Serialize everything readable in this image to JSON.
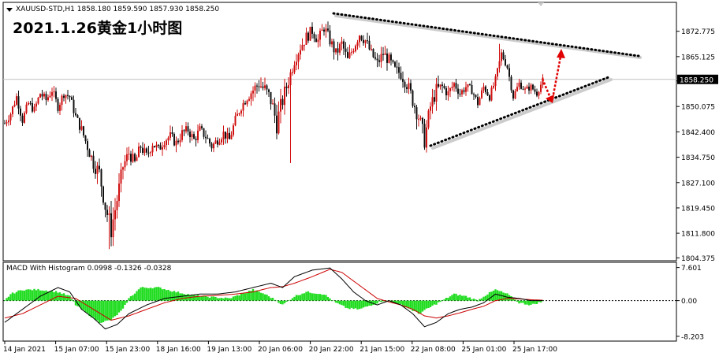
{
  "header": {
    "symbol_info": "XAUUSD-STD,H1  1858.180 1859.590 1857.930 1858.250",
    "title": "2021.1.26黄金1小时图"
  },
  "macd": {
    "label": "MACD With Histogram 0.0998 -0.1326 -0.0328"
  },
  "price_marker": "1858.250",
  "colors": {
    "bull": "#d01010",
    "bear": "#111111",
    "histogram": "#22dd22",
    "macd_line": "#000000",
    "signal_line": "#cc0000",
    "arrow": "#e00000"
  },
  "chart_data": [
    {
      "type": "candlestick",
      "title": "2021.1.26黄金1小时图",
      "ylim": [
        1803.5,
        1881.5
      ],
      "yticks": [
        "1872.775",
        "1865.125",
        "1857.800",
        "1850.075",
        "1842.400",
        "1834.750",
        "1827.100",
        "1819.450",
        "1811.800",
        "1804.375"
      ],
      "ytick_values": [
        1872.775,
        1865.125,
        1857.8,
        1850.075,
        1842.4,
        1834.75,
        1827.1,
        1819.45,
        1811.8,
        1804.375
      ],
      "current_price": 1858.25,
      "xtick_labels": [
        "14 Jan 2021",
        "15 Jan 07:00",
        "15 Jan 23:00",
        "18 Jan 16:00",
        "19 Jan 13:00",
        "20 Jan 06:00",
        "20 Jan 22:00",
        "21 Jan 15:00",
        "22 Jan 08:00",
        "25 Jan 01:00",
        "25 Jan 17:00"
      ],
      "close_path": [
        [
          0,
          1845
        ],
        [
          3,
          1848
        ],
        [
          6,
          1853
        ],
        [
          9,
          1846
        ],
        [
          12,
          1851
        ],
        [
          15,
          1849
        ],
        [
          18,
          1854
        ],
        [
          21,
          1852
        ],
        [
          24,
          1855
        ],
        [
          27,
          1850
        ],
        [
          30,
          1854
        ],
        [
          33,
          1853
        ],
        [
          36,
          1847
        ],
        [
          39,
          1843
        ],
        [
          42,
          1838
        ],
        [
          45,
          1833
        ],
        [
          48,
          1830
        ],
        [
          51,
          1820
        ],
        [
          54,
          1813
        ],
        [
          57,
          1822
        ],
        [
          60,
          1832
        ],
        [
          63,
          1836
        ],
        [
          66,
          1833
        ],
        [
          69,
          1838
        ],
        [
          72,
          1835
        ],
        [
          75,
          1839
        ],
        [
          78,
          1837
        ],
        [
          81,
          1840
        ],
        [
          84,
          1841
        ],
        [
          87,
          1839
        ],
        [
          90,
          1842
        ],
        [
          93,
          1843
        ],
        [
          96,
          1840
        ],
        [
          99,
          1843
        ],
        [
          102,
          1841
        ],
        [
          105,
          1838
        ],
        [
          108,
          1840
        ],
        [
          111,
          1842
        ],
        [
          114,
          1840
        ],
        [
          117,
          1846
        ],
        [
          120,
          1850
        ],
        [
          123,
          1853
        ],
        [
          126,
          1855
        ],
        [
          129,
          1857
        ],
        [
          132,
          1855
        ],
        [
          135,
          1852
        ],
        [
          138,
          1845
        ],
        [
          141,
          1852
        ],
        [
          144,
          1858
        ],
        [
          147,
          1864
        ],
        [
          150,
          1868
        ],
        [
          153,
          1871
        ],
        [
          156,
          1873
        ],
        [
          159,
          1870
        ],
        [
          162,
          1874
        ],
        [
          165,
          1870
        ],
        [
          168,
          1866
        ],
        [
          171,
          1869
        ],
        [
          174,
          1864
        ],
        [
          177,
          1868
        ],
        [
          180,
          1872
        ],
        [
          183,
          1870
        ],
        [
          186,
          1866
        ],
        [
          189,
          1863
        ],
        [
          192,
          1866
        ],
        [
          195,
          1864
        ],
        [
          198,
          1861
        ],
        [
          201,
          1860
        ],
        [
          204,
          1857
        ],
        [
          207,
          1852
        ],
        [
          210,
          1847
        ],
        [
          213,
          1840
        ],
        [
          216,
          1850
        ],
        [
          219,
          1855
        ],
        [
          222,
          1856
        ],
        [
          225,
          1854
        ],
        [
          228,
          1857
        ],
        [
          231,
          1854
        ],
        [
          234,
          1856
        ],
        [
          237,
          1855
        ],
        [
          240,
          1851
        ],
        [
          243,
          1856
        ],
        [
          246,
          1853
        ],
        [
          249,
          1858
        ],
        [
          252,
          1866
        ],
        [
          255,
          1862
        ],
        [
          258,
          1853
        ],
        [
          261,
          1857
        ],
        [
          264,
          1855
        ],
        [
          267,
          1856
        ],
        [
          270,
          1854
        ],
        [
          273,
          1858
        ]
      ],
      "volatility_path": [
        [
          0,
          3
        ],
        [
          36,
          3
        ],
        [
          45,
          5
        ],
        [
          54,
          7
        ],
        [
          63,
          4
        ],
        [
          120,
          3
        ],
        [
          138,
          7
        ],
        [
          147,
          4
        ],
        [
          198,
          4
        ],
        [
          213,
          6
        ],
        [
          228,
          3
        ],
        [
          273,
          2
        ]
      ],
      "spikes": [
        {
          "bar": 53,
          "low": 1807
        },
        {
          "bar": 55,
          "low": 1808
        },
        {
          "bar": 145,
          "low": 1833
        },
        {
          "bar": 213,
          "low": 1837
        },
        {
          "bar": 251,
          "high": 1869
        }
      ]
    },
    {
      "type": "macd",
      "name": "MACD With Histogram",
      "values": {
        "macd": 0.0998,
        "signal": -0.1326,
        "histogram": -0.0328
      },
      "ylim": [
        -9.3,
        8.8
      ],
      "yticks": [
        "7.601",
        "0.00",
        "-8.203"
      ],
      "ytick_values": [
        7.601,
        0.0,
        -8.203
      ],
      "hist_path": [
        [
          0,
          0
        ],
        [
          3,
          1.5
        ],
        [
          9,
          2.5
        ],
        [
          18,
          2.5
        ],
        [
          27,
          2
        ],
        [
          33,
          1
        ],
        [
          36,
          -1
        ],
        [
          42,
          -3
        ],
        [
          48,
          -5
        ],
        [
          54,
          -4.5
        ],
        [
          60,
          -2
        ],
        [
          63,
          0.5
        ],
        [
          69,
          3
        ],
        [
          78,
          3
        ],
        [
          87,
          2
        ],
        [
          96,
          1.2
        ],
        [
          105,
          0.8
        ],
        [
          114,
          0.5
        ],
        [
          120,
          1.5
        ],
        [
          126,
          2.5
        ],
        [
          132,
          1.5
        ],
        [
          138,
          0
        ],
        [
          141,
          -1
        ],
        [
          147,
          1
        ],
        [
          153,
          2
        ],
        [
          162,
          1.5
        ],
        [
          168,
          -0.5
        ],
        [
          174,
          -1.8
        ],
        [
          180,
          -2
        ],
        [
          186,
          -1
        ],
        [
          192,
          0
        ],
        [
          198,
          -0.5
        ],
        [
          204,
          -1.5
        ],
        [
          210,
          -3
        ],
        [
          216,
          -1.5
        ],
        [
          222,
          0
        ],
        [
          228,
          1.5
        ],
        [
          234,
          1
        ],
        [
          240,
          0
        ],
        [
          243,
          1
        ],
        [
          249,
          2.5
        ],
        [
          255,
          1.5
        ],
        [
          261,
          -0.5
        ],
        [
          267,
          -1
        ],
        [
          273,
          -0.2
        ]
      ],
      "macd_path": [
        [
          0,
          -5
        ],
        [
          9,
          -2
        ],
        [
          18,
          1
        ],
        [
          27,
          3
        ],
        [
          33,
          2
        ],
        [
          39,
          -2
        ],
        [
          45,
          -4
        ],
        [
          51,
          -6.5
        ],
        [
          57,
          -5.5
        ],
        [
          63,
          -3
        ],
        [
          72,
          -1
        ],
        [
          81,
          0.5
        ],
        [
          90,
          1
        ],
        [
          99,
          1.5
        ],
        [
          108,
          1.5
        ],
        [
          117,
          2
        ],
        [
          126,
          3
        ],
        [
          135,
          4
        ],
        [
          141,
          3
        ],
        [
          147,
          5.5
        ],
        [
          156,
          7
        ],
        [
          165,
          7.5
        ],
        [
          171,
          5
        ],
        [
          177,
          2
        ],
        [
          183,
          0
        ],
        [
          189,
          -1
        ],
        [
          195,
          0
        ],
        [
          201,
          -1
        ],
        [
          207,
          -3
        ],
        [
          213,
          -6
        ],
        [
          219,
          -5
        ],
        [
          225,
          -3
        ],
        [
          231,
          -2
        ],
        [
          237,
          -1.5
        ],
        [
          243,
          -0.5
        ],
        [
          249,
          1.5
        ],
        [
          255,
          0.8
        ],
        [
          261,
          0.5
        ],
        [
          267,
          0
        ],
        [
          273,
          0
        ]
      ],
      "signal_path": [
        [
          0,
          -4
        ],
        [
          9,
          -3
        ],
        [
          18,
          -1
        ],
        [
          27,
          1
        ],
        [
          36,
          0.5
        ],
        [
          45,
          -2
        ],
        [
          54,
          -4.5
        ],
        [
          63,
          -3.5
        ],
        [
          72,
          -2
        ],
        [
          81,
          -0.5
        ],
        [
          90,
          0.5
        ],
        [
          99,
          1
        ],
        [
          108,
          1.2
        ],
        [
          117,
          1.5
        ],
        [
          126,
          2
        ],
        [
          135,
          3
        ],
        [
          141,
          3.2
        ],
        [
          147,
          4
        ],
        [
          156,
          5.5
        ],
        [
          165,
          7.2
        ],
        [
          171,
          6.5
        ],
        [
          177,
          4.5
        ],
        [
          183,
          2.5
        ],
        [
          189,
          0.5
        ],
        [
          195,
          -0.3
        ],
        [
          201,
          -1
        ],
        [
          207,
          -2
        ],
        [
          213,
          -3.5
        ],
        [
          219,
          -4
        ],
        [
          225,
          -3.5
        ],
        [
          231,
          -2.8
        ],
        [
          237,
          -2
        ],
        [
          243,
          -1.3
        ],
        [
          249,
          0
        ],
        [
          255,
          0.5
        ],
        [
          261,
          0.4
        ],
        [
          267,
          0.2
        ],
        [
          273,
          0.1
        ]
      ]
    }
  ]
}
